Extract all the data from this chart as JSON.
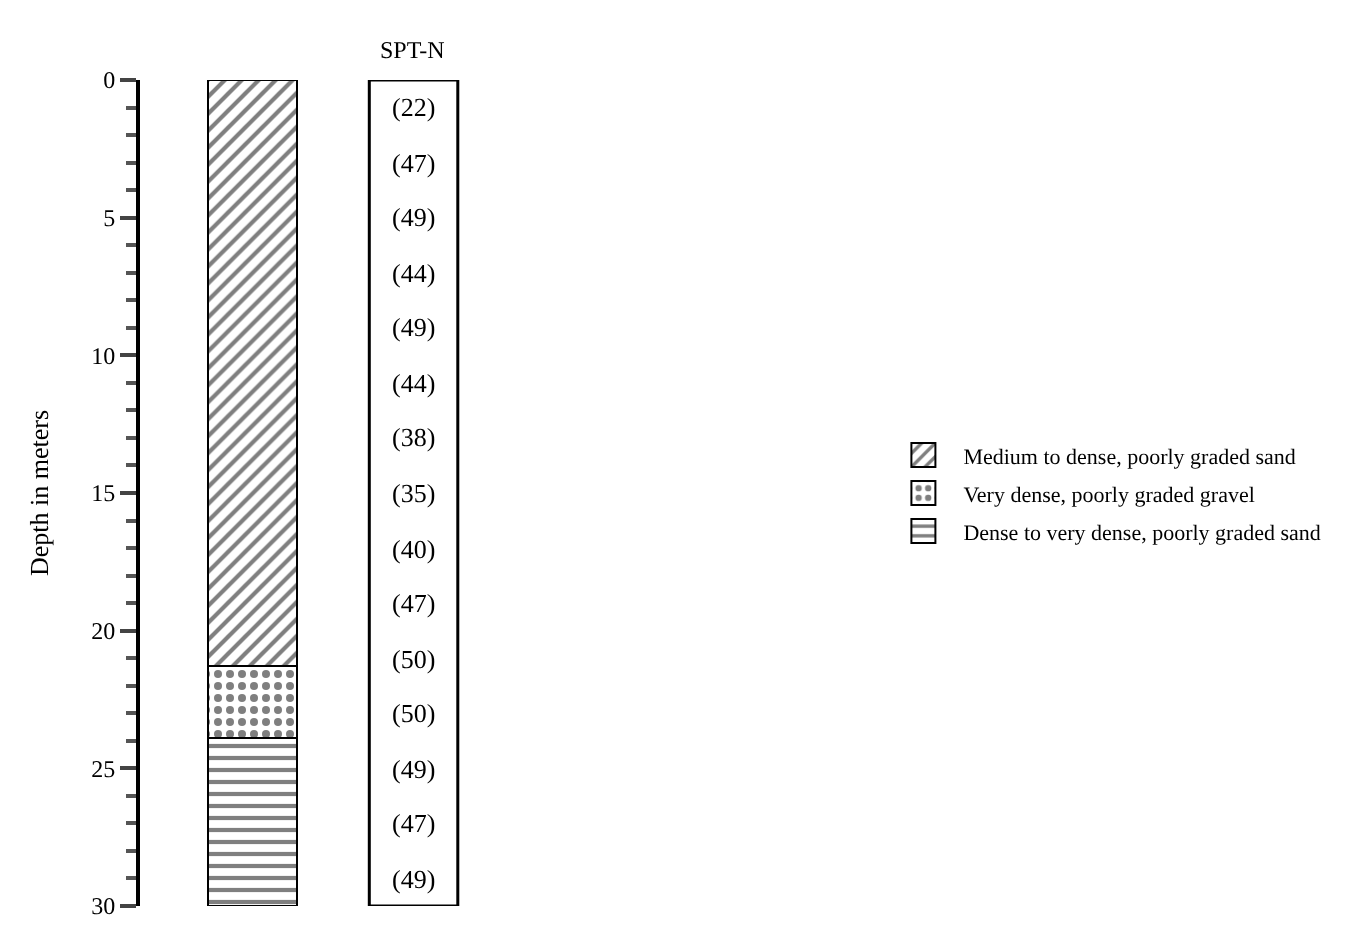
{
  "chart_data": {
    "type": "bar",
    "stacked": true,
    "title": "SPT-N",
    "ylabel": "Depth in meters",
    "categories": [
      null
    ],
    "series": [
      {
        "name": "Medium to dense, poorly graded sand",
        "color": "#000000",
        "values": [
          21.3
        ]
      },
      {
        "name": "Very dense, poorly graded gravel",
        "color": "#000000",
        "values": [
          2.6
        ]
      },
      {
        "name": "Dense to very dense, poorly graded sand",
        "color": "#000000",
        "values": [
          6.1
        ]
      }
    ],
    "ylim": [
      30,
      0
    ],
    "yticks": [
      0,
      5,
      10,
      15,
      20,
      25,
      30
    ],
    "tick_labels": "y",
    "legend": "right",
    "annotations": [
      "(22)",
      "(47)",
      "(49)",
      "(44)",
      "(49)",
      "(44)",
      "(38)",
      "(35)",
      "(40)",
      "(47)",
      "(50)",
      "(50)",
      "(49)",
      "(47)",
      "(49)"
    ]
  }
}
